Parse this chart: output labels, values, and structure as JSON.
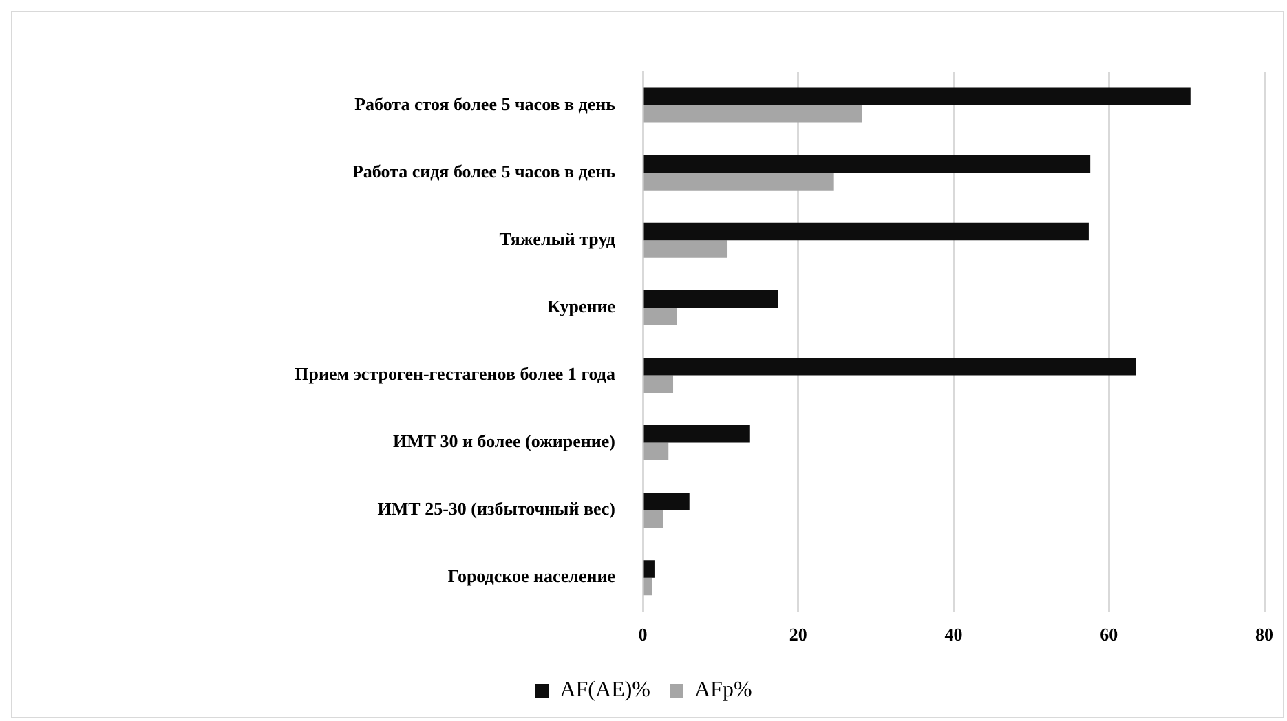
{
  "chart_data": {
    "type": "bar",
    "orientation": "horizontal",
    "categories": [
      "Работа стоя более 5 часов в день",
      "Работа сидя более 5 часов в день",
      "Тяжелый труд",
      "Курение",
      "Прием эстроген-гестагенов более 1 года",
      "ИМТ 30 и более (ожирение)",
      "ИМТ 25-30 (избыточный вес)",
      "Городское население"
    ],
    "series": [
      {
        "name": "AF(AE)%",
        "color": "#0d0d0d",
        "values": [
          70.5,
          57.6,
          57.4,
          17.4,
          63.5,
          13.8,
          6.0,
          1.5
        ]
      },
      {
        "name": "AFp%",
        "color": "#a6a6a6",
        "values": [
          28.2,
          24.6,
          10.9,
          4.4,
          3.9,
          3.3,
          2.6,
          1.2
        ]
      }
    ],
    "xlim": [
      0,
      80
    ],
    "xticks": [
      0,
      20,
      40,
      60,
      80
    ],
    "grid": "x",
    "legend": "bottom"
  }
}
